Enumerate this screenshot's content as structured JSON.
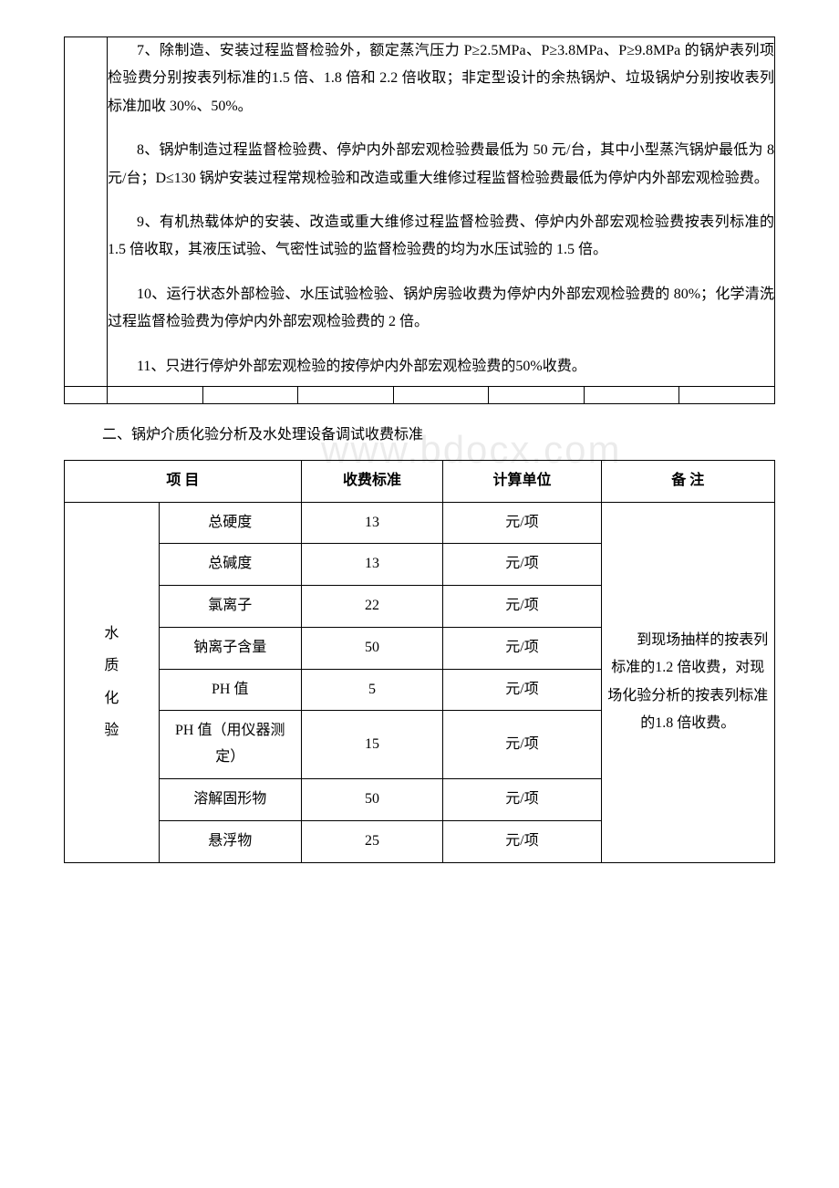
{
  "notes": {
    "p7": "7、除制造、安装过程监督检验外，额定蒸汽压力 P≥2.5MPa、P≥3.8MPa、P≥9.8MPa 的锅炉表列项检验费分别按表列标准的1.5 倍、1.8 倍和 2.2 倍收取；非定型设计的余热锅炉、垃圾锅炉分别按收表列标准加收 30%、50%。",
    "p8": "8、锅炉制造过程监督检验费、停炉内外部宏观检验费最低为 50 元/台，其中小型蒸汽锅炉最低为 8 元/台；D≤130 锅炉安装过程常规检验和改造或重大维修过程监督检验费最低为停炉内外部宏观检验费。",
    "p9": "9、有机热载体炉的安装、改造或重大维修过程监督检验费、停炉内外部宏观检验费按表列标准的 1.5 倍收取，其液压试验、气密性试验的监督检验费的均为水压试验的 1.5 倍。",
    "p10": "10、运行状态外部检验、水压试验检验、锅炉房验收费为停炉内外部宏观检验费的 80%；化学清洗过程监督检验费为停炉内外部宏观检验费的 2 倍。",
    "p11": "11、只进行停炉外部宏观检验的按停炉内外部宏观检验费的50%收费。"
  },
  "section_title": "二、锅炉介质化验分析及水处理设备调试收费标准",
  "watermark": "www.bdocx.com",
  "table2": {
    "headers": {
      "project": "项 目",
      "fee": "收费标准",
      "unit": "计算单位",
      "note": "备 注"
    },
    "row_group_label": "水\n质\n化\n验",
    "rows": [
      {
        "item": "总硬度",
        "fee": "13",
        "unit": "元/项"
      },
      {
        "item": "总碱度",
        "fee": "13",
        "unit": "元/项"
      },
      {
        "item": "氯离子",
        "fee": "22",
        "unit": "元/项"
      },
      {
        "item": "钠离子含量",
        "fee": "50",
        "unit": "元/项"
      },
      {
        "item": "PH 值",
        "fee": "5",
        "unit": "元/项"
      },
      {
        "item": "PH 值（用仪器测定）",
        "fee": "15",
        "unit": "元/项"
      },
      {
        "item": "溶解固形物",
        "fee": "50",
        "unit": "元/项"
      },
      {
        "item": "悬浮物",
        "fee": "25",
        "unit": "元/项"
      }
    ],
    "note_text": "　　到现场抽样的按表列标准的1.2 倍收费，对现场化验分析的按表列标准的1.8 倍收费。"
  },
  "empty_cols": 8
}
